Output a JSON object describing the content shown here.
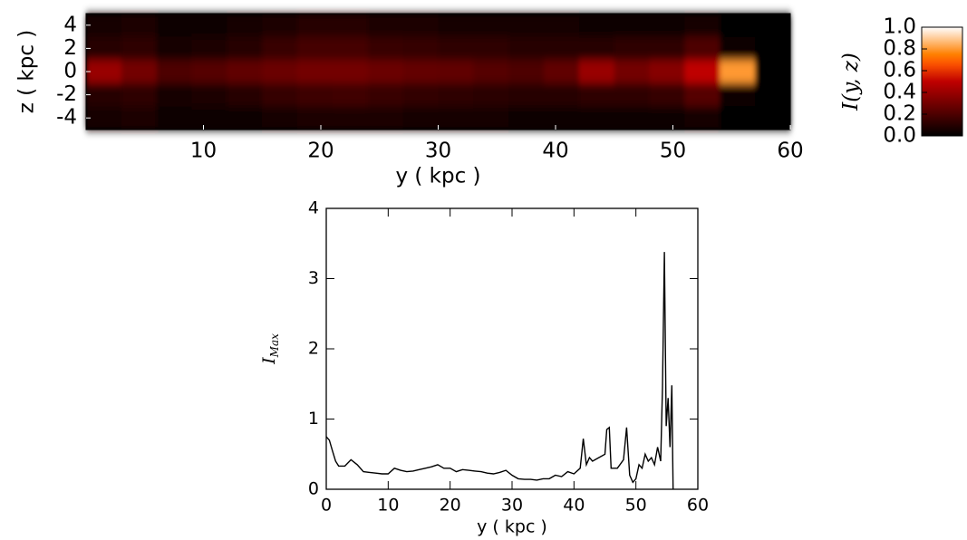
{
  "chart_data": [
    {
      "type": "heatmap",
      "colormap": "hot",
      "xlabel": "y ( kpc )",
      "ylabel": "z ( kpc )",
      "xlim": [
        0,
        60
      ],
      "ylim": [
        -5,
        5
      ],
      "xticks": [
        10,
        20,
        30,
        40,
        50,
        60
      ],
      "yticks": [
        -4,
        -2,
        0,
        2,
        4
      ],
      "x": [
        1.5,
        4.5,
        7.5,
        10.5,
        13.5,
        16.5,
        19.5,
        22.5,
        25.5,
        28.5,
        31.5,
        34.5,
        37.5,
        40.5,
        43.5,
        46.5,
        49.5,
        52.5,
        55.5,
        58.5
      ],
      "y": [
        4,
        2,
        0,
        -2,
        -4
      ],
      "z": [
        [
          0.05,
          0.08,
          0.03,
          0.03,
          0.05,
          0.08,
          0.1,
          0.1,
          0.08,
          0.08,
          0.06,
          0.06,
          0.05,
          0.05,
          0.04,
          0.04,
          0.04,
          0.05,
          0,
          0
        ],
        [
          0.1,
          0.12,
          0.06,
          0.08,
          0.1,
          0.15,
          0.18,
          0.18,
          0.15,
          0.14,
          0.12,
          0.12,
          0.1,
          0.1,
          0.1,
          0.12,
          0.12,
          0.2,
          0.02,
          0
        ],
        [
          0.4,
          0.3,
          0.2,
          0.22,
          0.25,
          0.28,
          0.3,
          0.3,
          0.28,
          0.26,
          0.25,
          0.22,
          0.2,
          0.25,
          0.4,
          0.3,
          0.35,
          0.5,
          0.8,
          0
        ],
        [
          0.1,
          0.12,
          0.06,
          0.08,
          0.1,
          0.14,
          0.16,
          0.17,
          0.15,
          0.13,
          0.12,
          0.11,
          0.1,
          0.1,
          0.12,
          0.12,
          0.14,
          0.22,
          0.02,
          0
        ],
        [
          0.05,
          0.08,
          0.03,
          0.03,
          0.04,
          0.06,
          0.08,
          0.08,
          0.07,
          0.06,
          0.05,
          0.05,
          0.04,
          0.04,
          0.04,
          0.04,
          0.04,
          0.05,
          0,
          0
        ]
      ],
      "colorbar": {
        "label": "I(y, z)",
        "lim": [
          0,
          1
        ],
        "ticks": [
          {
            "value": 0,
            "label": "0.0"
          },
          0.2,
          0.4,
          0.6,
          0.8,
          {
            "value": 1,
            "label": "1.0"
          }
        ]
      }
    },
    {
      "type": "line",
      "xlabel": "y ( kpc )",
      "ylabel": "I",
      "ylabel_subscript": "Max",
      "xlim": [
        0,
        60
      ],
      "ylim": [
        0,
        4
      ],
      "xticks": [
        0,
        10,
        20,
        30,
        40,
        50,
        60
      ],
      "yticks": [
        0,
        1,
        2,
        3,
        4
      ],
      "color": "#000000",
      "x": [
        0,
        0.5,
        1,
        1.5,
        2,
        3,
        4,
        5,
        6,
        7,
        8,
        9,
        10,
        11,
        12,
        13,
        14,
        15,
        16,
        17,
        18,
        19,
        20,
        21,
        22,
        23,
        24,
        25,
        26,
        27,
        28,
        29,
        30,
        31,
        32,
        33,
        34,
        35,
        36,
        37,
        38,
        39,
        40,
        41,
        41.5,
        42,
        42.5,
        43,
        44,
        45,
        45.3,
        45.7,
        46,
        46.5,
        47,
        48,
        48.5,
        49,
        49.5,
        50,
        50.5,
        51,
        51.5,
        52,
        52.5,
        53,
        53.5,
        54,
        54.3,
        54.6,
        54.9,
        55.2,
        55.5,
        55.8,
        56
      ],
      "values": [
        0.75,
        0.7,
        0.55,
        0.4,
        0.33,
        0.33,
        0.42,
        0.35,
        0.25,
        0.24,
        0.23,
        0.22,
        0.22,
        0.3,
        0.27,
        0.25,
        0.26,
        0.28,
        0.3,
        0.32,
        0.35,
        0.3,
        0.3,
        0.25,
        0.28,
        0.27,
        0.26,
        0.25,
        0.23,
        0.22,
        0.24,
        0.27,
        0.2,
        0.15,
        0.14,
        0.14,
        0.13,
        0.15,
        0.15,
        0.2,
        0.18,
        0.25,
        0.22,
        0.3,
        0.72,
        0.35,
        0.45,
        0.4,
        0.45,
        0.5,
        0.85,
        0.88,
        0.3,
        0.3,
        0.3,
        0.42,
        0.88,
        0.2,
        0.1,
        0.15,
        0.35,
        0.3,
        0.5,
        0.4,
        0.45,
        0.35,
        0.6,
        0.4,
        1.45,
        3.38,
        0.9,
        1.3,
        0.6,
        1.48,
        0
      ]
    }
  ]
}
